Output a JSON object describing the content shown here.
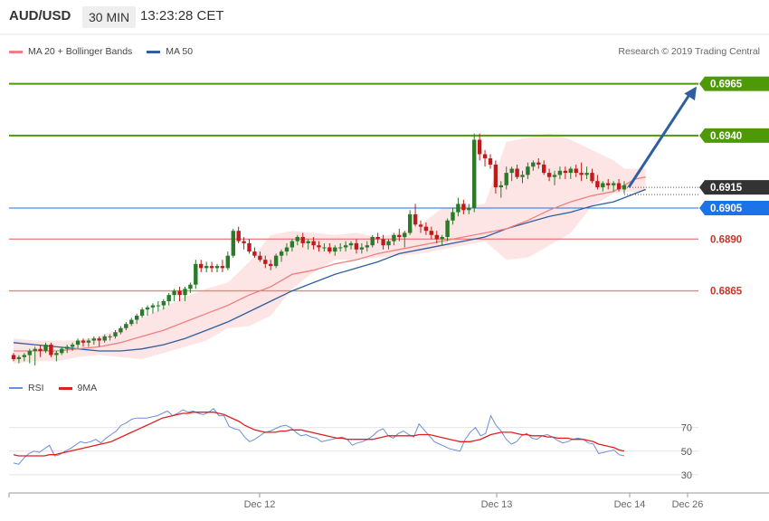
{
  "header": {
    "symbol": "AUD/USD",
    "timeframe": "30 MIN",
    "time": "13:23:28 CET"
  },
  "legend": {
    "ma20_label": "MA 20 + Bollinger Bands",
    "ma50_label": "MA 50",
    "credit": "Research © 2019 Trading Central"
  },
  "rsi_legend": {
    "rsi_label": "RSI",
    "ma_label": "9MA"
  },
  "colors": {
    "up_candle": "#2a7a2a",
    "down_candle": "#c11a1a",
    "ma20": "#f08080",
    "bollinger_fill": "#fde0e0",
    "ma50": "#2e5f9e",
    "resistance": "#4e9a06",
    "support": "#f08080",
    "current_price": "#333333",
    "pivot": "#1a73e8",
    "arrow": "#2e5f9e",
    "rsi": "#6b8fd6",
    "rsi_ma": "#e02020"
  },
  "chart_data": [
    {
      "type": "candlestick",
      "title": "",
      "ylim": [
        0.6822,
        0.6988
      ],
      "x_tick_labels": [
        "Dec 12",
        "Dec 13",
        "Dec 14",
        "Dec 26"
      ],
      "price_levels": [
        {
          "value": 0.6965,
          "label": "0.6965",
          "kind": "resistance"
        },
        {
          "value": 0.694,
          "label": "0.6940",
          "kind": "resistance"
        },
        {
          "value": 0.6915,
          "label": "0.6915",
          "kind": "current"
        },
        {
          "value": 0.6905,
          "label": "0.6905",
          "kind": "pivot"
        },
        {
          "value": 0.689,
          "label": "0.6890",
          "kind": "support"
        },
        {
          "value": 0.6865,
          "label": "0.6865",
          "kind": "support"
        }
      ],
      "forecast_arrow": {
        "from": 0.6915,
        "to": 0.6965
      },
      "series": [
        {
          "name": "MA 20"
        },
        {
          "name": "Bollinger Bands"
        },
        {
          "name": "MA 50"
        }
      ],
      "ohlc": [
        [
          0.6834,
          0.6835,
          0.6831,
          0.6832
        ],
        [
          0.6832,
          0.6834,
          0.683,
          0.6833
        ],
        [
          0.6833,
          0.6835,
          0.6831,
          0.6834
        ],
        [
          0.6834,
          0.6837,
          0.683,
          0.6836
        ],
        [
          0.6836,
          0.6838,
          0.6829,
          0.6837
        ],
        [
          0.6837,
          0.6839,
          0.6833,
          0.6836
        ],
        [
          0.6836,
          0.684,
          0.6835,
          0.6839
        ],
        [
          0.6839,
          0.684,
          0.6833,
          0.6834
        ],
        [
          0.6834,
          0.6836,
          0.6831,
          0.6835
        ],
        [
          0.6835,
          0.6838,
          0.6834,
          0.6837
        ],
        [
          0.6837,
          0.6839,
          0.6835,
          0.6838
        ],
        [
          0.6838,
          0.684,
          0.6836,
          0.6839
        ],
        [
          0.6839,
          0.6842,
          0.6837,
          0.6841
        ],
        [
          0.6841,
          0.6842,
          0.6838,
          0.684
        ],
        [
          0.684,
          0.6842,
          0.6838,
          0.6841
        ],
        [
          0.6841,
          0.6843,
          0.6839,
          0.6842
        ],
        [
          0.6842,
          0.6843,
          0.6838,
          0.6841
        ],
        [
          0.6841,
          0.6844,
          0.684,
          0.6843
        ],
        [
          0.6843,
          0.6844,
          0.6841,
          0.6843
        ],
        [
          0.6843,
          0.6846,
          0.6842,
          0.6845
        ],
        [
          0.6845,
          0.6848,
          0.6844,
          0.6847
        ],
        [
          0.6847,
          0.685,
          0.6846,
          0.6849
        ],
        [
          0.6849,
          0.6852,
          0.6848,
          0.6851
        ],
        [
          0.6851,
          0.6854,
          0.6849,
          0.6853
        ],
        [
          0.6853,
          0.6857,
          0.6852,
          0.6856
        ],
        [
          0.6856,
          0.6858,
          0.6853,
          0.6857
        ],
        [
          0.6857,
          0.6859,
          0.6854,
          0.6858
        ],
        [
          0.6858,
          0.686,
          0.6855,
          0.6858
        ],
        [
          0.6858,
          0.6861,
          0.6856,
          0.686
        ],
        [
          0.686,
          0.6864,
          0.6858,
          0.6863
        ],
        [
          0.6863,
          0.6866,
          0.686,
          0.6865
        ],
        [
          0.6865,
          0.6867,
          0.686,
          0.6863
        ],
        [
          0.6863,
          0.6867,
          0.686,
          0.6866
        ],
        [
          0.6866,
          0.6869,
          0.6864,
          0.6868
        ],
        [
          0.6868,
          0.688,
          0.6866,
          0.6878
        ],
        [
          0.6878,
          0.688,
          0.6874,
          0.6876
        ],
        [
          0.6876,
          0.6879,
          0.6874,
          0.6877
        ],
        [
          0.6877,
          0.6879,
          0.6874,
          0.6876
        ],
        [
          0.6876,
          0.6878,
          0.6874,
          0.6877
        ],
        [
          0.6877,
          0.688,
          0.6874,
          0.6876
        ],
        [
          0.6876,
          0.6884,
          0.6875,
          0.6882
        ],
        [
          0.6882,
          0.6895,
          0.6881,
          0.6894
        ],
        [
          0.6894,
          0.6896,
          0.6888,
          0.6889
        ],
        [
          0.6889,
          0.6891,
          0.6885,
          0.6888
        ],
        [
          0.6888,
          0.689,
          0.6883,
          0.6884
        ],
        [
          0.6884,
          0.6886,
          0.6881,
          0.6882
        ],
        [
          0.6882,
          0.6884,
          0.6879,
          0.688
        ],
        [
          0.688,
          0.6882,
          0.6876,
          0.6878
        ],
        [
          0.6878,
          0.688,
          0.6875,
          0.6877
        ],
        [
          0.6877,
          0.6883,
          0.6876,
          0.6882
        ],
        [
          0.6882,
          0.6885,
          0.6879,
          0.6884
        ],
        [
          0.6884,
          0.6888,
          0.6882,
          0.6886
        ],
        [
          0.6886,
          0.689,
          0.6884,
          0.6889
        ],
        [
          0.6889,
          0.6892,
          0.6887,
          0.6891
        ],
        [
          0.6891,
          0.6893,
          0.6886,
          0.6888
        ],
        [
          0.6888,
          0.689,
          0.6885,
          0.6889
        ],
        [
          0.6889,
          0.6891,
          0.6885,
          0.6887
        ],
        [
          0.6887,
          0.6889,
          0.6884,
          0.6886
        ],
        [
          0.6886,
          0.6888,
          0.6884,
          0.6886
        ],
        [
          0.6886,
          0.6888,
          0.6883,
          0.6884
        ],
        [
          0.6884,
          0.6887,
          0.6882,
          0.6886
        ],
        [
          0.6886,
          0.6888,
          0.6884,
          0.6886
        ],
        [
          0.6886,
          0.6889,
          0.6884,
          0.6887
        ],
        [
          0.6887,
          0.6889,
          0.6885,
          0.6888
        ],
        [
          0.6888,
          0.689,
          0.6883,
          0.6885
        ],
        [
          0.6885,
          0.6888,
          0.6883,
          0.6886
        ],
        [
          0.6886,
          0.6889,
          0.6884,
          0.6887
        ],
        [
          0.6887,
          0.6892,
          0.6886,
          0.6891
        ],
        [
          0.6891,
          0.6893,
          0.6888,
          0.689
        ],
        [
          0.689,
          0.6892,
          0.6885,
          0.6887
        ],
        [
          0.6887,
          0.689,
          0.6885,
          0.6889
        ],
        [
          0.6889,
          0.6893,
          0.6887,
          0.6892
        ],
        [
          0.6892,
          0.6895,
          0.6889,
          0.6891
        ],
        [
          0.6891,
          0.6894,
          0.6886,
          0.6893
        ],
        [
          0.6893,
          0.6904,
          0.6892,
          0.6902
        ],
        [
          0.6902,
          0.6907,
          0.6896,
          0.6897
        ],
        [
          0.6897,
          0.6899,
          0.6893,
          0.6896
        ],
        [
          0.6896,
          0.6898,
          0.6892,
          0.6894
        ],
        [
          0.6894,
          0.6896,
          0.689,
          0.6892
        ],
        [
          0.6892,
          0.6894,
          0.6888,
          0.689
        ],
        [
          0.689,
          0.6892,
          0.6887,
          0.6891
        ],
        [
          0.6891,
          0.69,
          0.6889,
          0.6899
        ],
        [
          0.6899,
          0.6905,
          0.6897,
          0.6903
        ],
        [
          0.6903,
          0.691,
          0.6901,
          0.6907
        ],
        [
          0.6907,
          0.6909,
          0.6902,
          0.6904
        ],
        [
          0.6904,
          0.6907,
          0.6902,
          0.6905
        ],
        [
          0.6905,
          0.6941,
          0.6903,
          0.6938
        ],
        [
          0.6938,
          0.6941,
          0.6928,
          0.6931
        ],
        [
          0.6931,
          0.6933,
          0.6925,
          0.6929
        ],
        [
          0.6929,
          0.6931,
          0.6924,
          0.6926
        ],
        [
          0.6926,
          0.6928,
          0.6912,
          0.6915
        ],
        [
          0.6915,
          0.6918,
          0.691,
          0.6916
        ],
        [
          0.6916,
          0.6925,
          0.6914,
          0.6922
        ],
        [
          0.6922,
          0.6925,
          0.6918,
          0.6924
        ],
        [
          0.6924,
          0.6926,
          0.6919,
          0.692
        ],
        [
          0.692,
          0.6923,
          0.6917,
          0.6921
        ],
        [
          0.6921,
          0.6927,
          0.6919,
          0.6925
        ],
        [
          0.6925,
          0.6928,
          0.6923,
          0.6927
        ],
        [
          0.6927,
          0.6929,
          0.6924,
          0.6926
        ],
        [
          0.6926,
          0.6928,
          0.6921,
          0.6922
        ],
        [
          0.6922,
          0.6924,
          0.6918,
          0.692
        ],
        [
          0.692,
          0.6923,
          0.6916,
          0.6921
        ],
        [
          0.6921,
          0.6925,
          0.6919,
          0.6923
        ],
        [
          0.6923,
          0.6925,
          0.6919,
          0.6922
        ],
        [
          0.6922,
          0.6925,
          0.6919,
          0.6924
        ],
        [
          0.6924,
          0.6926,
          0.692,
          0.6922
        ],
        [
          0.6922,
          0.6927,
          0.6918,
          0.6921
        ],
        [
          0.6921,
          0.6925,
          0.6919,
          0.6922
        ],
        [
          0.6922,
          0.6924,
          0.6917,
          0.6918
        ],
        [
          0.6918,
          0.6921,
          0.6914,
          0.6915
        ],
        [
          0.6915,
          0.6918,
          0.6913,
          0.6917
        ],
        [
          0.6917,
          0.6919,
          0.6914,
          0.6916
        ],
        [
          0.6916,
          0.6918,
          0.6913,
          0.6917
        ],
        [
          0.6917,
          0.6919,
          0.6913,
          0.6914
        ],
        [
          0.6914,
          0.6918,
          0.6912,
          0.6916
        ]
      ],
      "ma20": [
        0.6836,
        0.6836,
        0.6836,
        0.6837,
        0.6838,
        0.684,
        0.6843,
        0.6846,
        0.685,
        0.6854,
        0.6858,
        0.6863,
        0.6867,
        0.6873,
        0.6875,
        0.6878,
        0.688,
        0.6883,
        0.6885,
        0.6887,
        0.6889,
        0.6891,
        0.6893,
        0.6895,
        0.6899,
        0.6904,
        0.6908,
        0.6911,
        0.6913,
        0.6916,
        0.6919,
        0.692
      ],
      "ma20_x_index": [
        0,
        4,
        8,
        12,
        16,
        20,
        24,
        28,
        32,
        36,
        40,
        44,
        48,
        52,
        56,
        60,
        64,
        68,
        72,
        76,
        80,
        84,
        88,
        92,
        96,
        100,
        104,
        108,
        112,
        114,
        116,
        118
      ],
      "bb_upper": [
        0.6842,
        0.6841,
        0.6841,
        0.6841,
        0.6843,
        0.6847,
        0.6852,
        0.6857,
        0.6862,
        0.6866,
        0.6869,
        0.6879,
        0.6892,
        0.6894,
        0.6893,
        0.6892,
        0.6893,
        0.6891,
        0.6893,
        0.6897,
        0.6905,
        0.6906,
        0.6907,
        0.6937,
        0.6939,
        0.6941,
        0.6938,
        0.6933,
        0.6928,
        0.6924,
        0.6924,
        0.6924
      ],
      "bb_lower": [
        0.683,
        0.6831,
        0.6831,
        0.6833,
        0.6834,
        0.6833,
        0.6832,
        0.6835,
        0.6838,
        0.6841,
        0.6847,
        0.6848,
        0.6853,
        0.6866,
        0.6874,
        0.688,
        0.688,
        0.6881,
        0.6882,
        0.6883,
        0.6885,
        0.6887,
        0.6889,
        0.688,
        0.6881,
        0.6887,
        0.6893,
        0.6906,
        0.6912,
        0.6913,
        0.6913,
        0.6913
      ],
      "ma50": [
        0.684,
        0.6839,
        0.6838,
        0.6837,
        0.6836,
        0.6836,
        0.6837,
        0.6839,
        0.6842,
        0.6846,
        0.685,
        0.6855,
        0.686,
        0.6865,
        0.6869,
        0.6873,
        0.6876,
        0.6879,
        0.6883,
        0.6885,
        0.6887,
        0.6889,
        0.6891,
        0.6895,
        0.6898,
        0.6901,
        0.6903,
        0.6906,
        0.6908,
        0.691,
        0.6912,
        0.6914
      ]
    },
    {
      "type": "line",
      "title": "",
      "ylim": [
        20,
        95
      ],
      "y_ticks": [
        30,
        50,
        70
      ],
      "series": [
        {
          "name": "RSI",
          "values": [
            40,
            39,
            44,
            48,
            50,
            49,
            52,
            55,
            46,
            47,
            50,
            52,
            55,
            58,
            57,
            58,
            60,
            57,
            61,
            64,
            67,
            72,
            74,
            77,
            78,
            78,
            78,
            79,
            80,
            82,
            84,
            80,
            82,
            85,
            83,
            84,
            82,
            81,
            83,
            86,
            80,
            80,
            71,
            69,
            68,
            62,
            58,
            60,
            63,
            66,
            67,
            69,
            71,
            72,
            70,
            66,
            63,
            64,
            62,
            61,
            58,
            59,
            60,
            61,
            62,
            60,
            55,
            57,
            58,
            60,
            63,
            67,
            69,
            63,
            61,
            65,
            67,
            64,
            62,
            73,
            68,
            63,
            58,
            56,
            54,
            52,
            51,
            50,
            60,
            66,
            70,
            63,
            65,
            80,
            72,
            67,
            60,
            56,
            58,
            63,
            65,
            61,
            60,
            63,
            64,
            62,
            59,
            57,
            58,
            60,
            61,
            60,
            57,
            56,
            48,
            49,
            50,
            51,
            47,
            46
          ]
        },
        {
          "name": "9MA",
          "values": [
            47,
            46,
            46,
            46,
            46,
            46,
            46,
            47,
            47,
            48,
            49,
            50,
            51,
            52,
            53,
            54,
            55,
            56,
            57,
            58,
            60,
            62,
            64,
            66,
            68,
            70,
            72,
            74,
            76,
            78,
            79,
            80,
            81,
            82,
            82,
            83,
            83,
            83,
            83,
            83,
            82,
            81,
            79,
            77,
            75,
            72,
            70,
            68,
            67,
            66,
            66,
            66,
            67,
            67,
            68,
            68,
            68,
            67,
            66,
            65,
            64,
            63,
            62,
            61,
            61,
            60,
            60,
            60,
            60,
            60,
            60,
            61,
            62,
            63,
            63,
            63,
            63,
            63,
            63,
            64,
            64,
            64,
            63,
            62,
            61,
            60,
            59,
            58,
            58,
            58,
            59,
            60,
            62,
            64,
            65,
            66,
            66,
            66,
            65,
            64,
            64,
            63,
            63,
            63,
            62,
            62,
            61,
            61,
            61,
            60,
            60,
            60,
            59,
            58,
            56,
            55,
            54,
            53,
            51,
            50
          ]
        }
      ]
    }
  ]
}
